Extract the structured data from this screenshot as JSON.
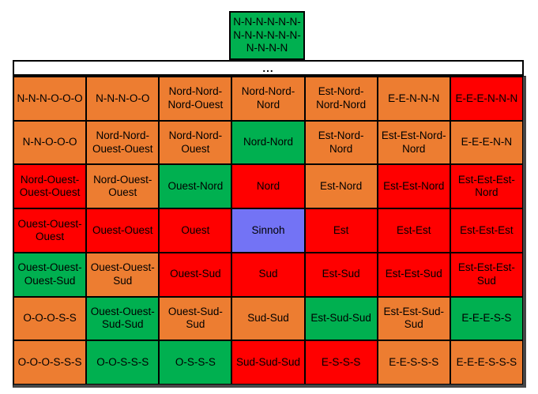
{
  "colors": {
    "orange": "#ED7D31",
    "red": "#FF0000",
    "green": "#00B050",
    "blue": "#7373F5"
  },
  "top_cell": {
    "label": "N-N-N-N-N-N-N-N-N-N-N-N-N-N-N-N",
    "color": "green"
  },
  "ellipsis": {
    "label": "..."
  },
  "grid": {
    "columns": 7,
    "rows": [
      [
        {
          "label": "N-N-N-O-O-O",
          "color": "orange"
        },
        {
          "label": "N-N-N-O-O",
          "color": "orange"
        },
        {
          "label": "Nord-Nord-Nord-Ouest",
          "color": "orange"
        },
        {
          "label": "Nord-Nord-Nord",
          "color": "orange"
        },
        {
          "label": "Est-Nord-Nord-Nord",
          "color": "orange"
        },
        {
          "label": "E-E-N-N-N",
          "color": "orange"
        },
        {
          "label": "E-E-E-N-N-N",
          "color": "red"
        }
      ],
      [
        {
          "label": "N-N-O-O-O",
          "color": "orange"
        },
        {
          "label": "Nord-Nord-Ouest-Ouest",
          "color": "orange"
        },
        {
          "label": "Nord-Nord-Ouest",
          "color": "orange"
        },
        {
          "label": "Nord-Nord",
          "color": "green"
        },
        {
          "label": "Est-Nord-Nord",
          "color": "orange"
        },
        {
          "label": "Est-Est-Nord-Nord",
          "color": "orange"
        },
        {
          "label": "E-E-E-N-N",
          "color": "orange"
        }
      ],
      [
        {
          "label": "Nord-Ouest-Ouest-Ouest",
          "color": "red"
        },
        {
          "label": "Nord-Ouest-Ouest",
          "color": "orange"
        },
        {
          "label": "Ouest-Nord",
          "color": "green"
        },
        {
          "label": "Nord",
          "color": "red"
        },
        {
          "label": "Est-Nord",
          "color": "orange"
        },
        {
          "label": "Est-Est-Nord",
          "color": "red"
        },
        {
          "label": "Est-Est-Est-Nord",
          "color": "red"
        }
      ],
      [
        {
          "label": "Ouest-Ouest-Ouest",
          "color": "red"
        },
        {
          "label": "Ouest-Ouest",
          "color": "red"
        },
        {
          "label": "Ouest",
          "color": "red"
        },
        {
          "label": "Sinnoh",
          "color": "blue"
        },
        {
          "label": "Est",
          "color": "red"
        },
        {
          "label": "Est-Est",
          "color": "red"
        },
        {
          "label": "Est-Est-Est",
          "color": "red"
        }
      ],
      [
        {
          "label": "Ouest-Ouest-Ouest-Sud",
          "color": "green"
        },
        {
          "label": "Ouest-Ouest-Sud",
          "color": "orange"
        },
        {
          "label": "Ouest-Sud",
          "color": "red"
        },
        {
          "label": "Sud",
          "color": "red"
        },
        {
          "label": "Est-Sud",
          "color": "red"
        },
        {
          "label": "Est-Est-Sud",
          "color": "red"
        },
        {
          "label": "Est-Est-Est-Sud",
          "color": "red"
        }
      ],
      [
        {
          "label": "O-O-O-S-S",
          "color": "orange"
        },
        {
          "label": "Ouest-Ouest-Sud-Sud",
          "color": "green"
        },
        {
          "label": "Ouest-Sud-Sud",
          "color": "orange"
        },
        {
          "label": "Sud-Sud",
          "color": "orange"
        },
        {
          "label": "Est-Sud-Sud",
          "color": "green"
        },
        {
          "label": "Est-Est-Sud-Sud",
          "color": "orange"
        },
        {
          "label": "E-E-E-S-S",
          "color": "green"
        }
      ],
      [
        {
          "label": "O-O-O-S-S-S",
          "color": "orange"
        },
        {
          "label": "O-O-S-S-S",
          "color": "green"
        },
        {
          "label": "O-S-S-S",
          "color": "green"
        },
        {
          "label": "Sud-Sud-Sud",
          "color": "red"
        },
        {
          "label": "E-S-S-S",
          "color": "red"
        },
        {
          "label": "E-E-S-S-S",
          "color": "orange"
        },
        {
          "label": "E-E-E-S-S-S",
          "color": "orange"
        }
      ]
    ]
  }
}
